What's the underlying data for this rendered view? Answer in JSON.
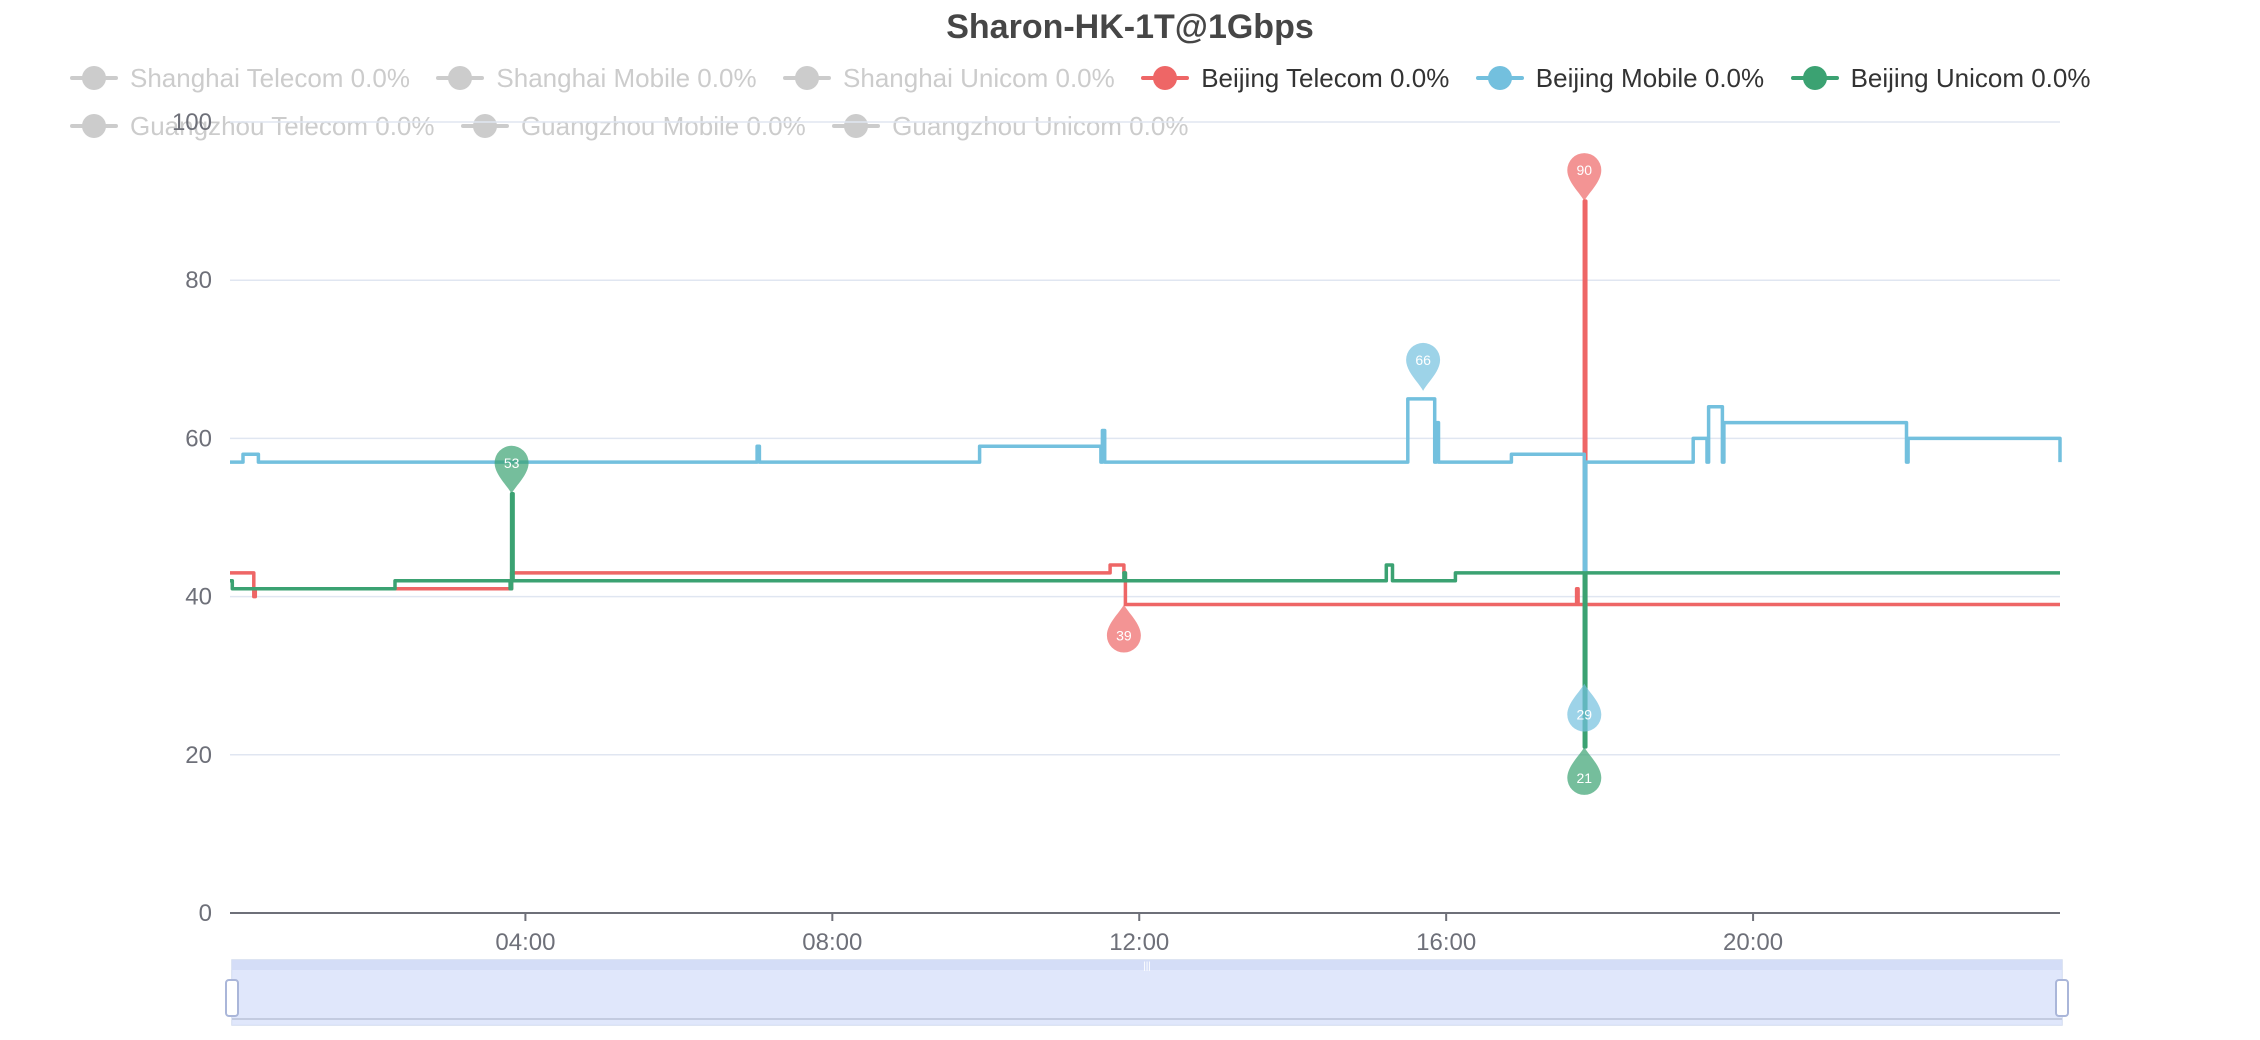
{
  "chart_data": {
    "type": "line",
    "title": "Sharon-HK-1T@1Gbps",
    "ylim": [
      0,
      100
    ],
    "yticks": [
      "0",
      "20",
      "40",
      "60",
      "80",
      "100"
    ],
    "x_tick_labels": [
      "04:00",
      "08:00",
      "12:00",
      "16:00",
      "20:00"
    ],
    "x_ticks_hours": [
      4,
      8,
      12,
      16,
      20
    ],
    "x_range_hours": [
      0.15,
      24
    ],
    "legend": [
      {
        "label": "Shanghai Telecom 0.0%",
        "color": "#cccccc",
        "active": false
      },
      {
        "label": "Shanghai Mobile 0.0%",
        "color": "#cccccc",
        "active": false
      },
      {
        "label": "Shanghai Unicom 0.0%",
        "color": "#cccccc",
        "active": false
      },
      {
        "label": "Beijing Telecom 0.0%",
        "color": "#ee6666",
        "active": true
      },
      {
        "label": "Beijing Mobile 0.0%",
        "color": "#73c0de",
        "active": true
      },
      {
        "label": "Beijing Unicom 0.0%",
        "color": "#3ba272",
        "active": true
      },
      {
        "label": "Guangzhou Telecom 0.0%",
        "color": "#cccccc",
        "active": false
      },
      {
        "label": "Guangzhou Mobile 0.0%",
        "color": "#cccccc",
        "active": false
      },
      {
        "label": "Guangzhou Unicom 0.0%",
        "color": "#cccccc",
        "active": false
      }
    ],
    "series": [
      {
        "name": "Beijing Telecom 0.0%",
        "color": "#ee6666",
        "x": [
          0.15,
          0.45,
          0.46,
          0.48,
          0.5,
          0.9,
          3.8,
          3.82,
          4.0,
          6.0,
          8.0,
          10.0,
          11.6,
          11.62,
          11.8,
          11.82,
          14.0,
          16.0,
          17.6,
          17.7,
          17.72,
          17.78,
          17.8,
          17.82,
          18.0,
          20.0,
          22.0,
          24.0
        ],
        "values": [
          43,
          43,
          40,
          41,
          41,
          41,
          41,
          43,
          43,
          43,
          43,
          43,
          43,
          44,
          43,
          39,
          39,
          39,
          39,
          41,
          39,
          39,
          90,
          39,
          39,
          39,
          39,
          39
        ],
        "markers": [
          {
            "label": "90",
            "x": 17.8,
            "y": 90,
            "type": "max"
          },
          {
            "label": "39",
            "x": 11.8,
            "y": 39,
            "type": "min"
          }
        ]
      },
      {
        "name": "Beijing Mobile 0.0%",
        "color": "#73c0de",
        "x": [
          0.15,
          0.3,
          0.32,
          0.5,
          0.52,
          4.0,
          7.0,
          7.02,
          7.05,
          9.9,
          9.92,
          11.5,
          11.52,
          11.55,
          15.4,
          15.5,
          15.8,
          15.85,
          15.87,
          15.9,
          16.8,
          16.85,
          17.75,
          17.8,
          17.82,
          18.0,
          19.2,
          19.22,
          19.4,
          19.42,
          19.6,
          19.62,
          22.0,
          22.02,
          24.0
        ],
        "values": [
          57,
          57,
          58,
          58,
          57,
          57,
          57,
          59,
          57,
          57,
          59,
          57,
          61,
          57,
          57,
          65,
          65,
          57,
          62,
          57,
          57,
          58,
          58,
          29,
          57,
          57,
          57,
          60,
          57,
          64,
          57,
          62,
          57,
          60,
          57
        ],
        "markers": [
          {
            "label": "66",
            "x": 15.7,
            "y": 66,
            "type": "max"
          },
          {
            "label": "29",
            "x": 17.8,
            "y": 29,
            "type": "min"
          }
        ]
      },
      {
        "name": "Beijing Unicom 0.0%",
        "color": "#3ba272",
        "x": [
          0.15,
          0.18,
          2.0,
          2.3,
          2.7,
          2.9,
          3.8,
          3.82,
          3.84,
          4.0,
          6.0,
          8.0,
          10.0,
          11.8,
          11.82,
          14.0,
          15.2,
          15.22,
          15.3,
          16.1,
          16.12,
          17.7,
          17.8,
          17.82,
          18.0,
          20.0,
          22.0,
          24.0
        ],
        "values": [
          42,
          41,
          41,
          42,
          42,
          42,
          41,
          53,
          42,
          42,
          42,
          42,
          42,
          43,
          42,
          42,
          42,
          44,
          42,
          42,
          43,
          43,
          21,
          43,
          43,
          43,
          43,
          43
        ],
        "markers": [
          {
            "label": "53",
            "x": 3.82,
            "y": 53,
            "type": "max"
          },
          {
            "label": "21",
            "x": 17.8,
            "y": 21,
            "type": "min"
          }
        ]
      }
    ],
    "data_zoom": {
      "start_percent": 0,
      "end_percent": 100
    }
  }
}
